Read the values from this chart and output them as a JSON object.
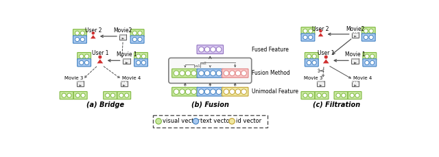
{
  "bg_color": "#ffffff",
  "green_fill": "#c8e8a0",
  "green_edge": "#80b840",
  "blue_fill": "#a8c8f0",
  "blue_edge": "#4080c0",
  "yellow_fill": "#f0e8a0",
  "yellow_edge": "#c0a030",
  "pink_fill": "#f8c8c8",
  "pink_edge": "#e08080",
  "purple_fill": "#d8c8f0",
  "purple_edge": "#9070c0",
  "red_person": "#d03030",
  "arrow_color": "#505050",
  "film_fill": "#f0f0f0",
  "film_edge": "#606060",
  "label_a": "(a) Bridge",
  "label_b": "(b) Fusion",
  "label_c": "(c) Filtration",
  "legend_visual": "visual vector",
  "legend_text": "text vector",
  "legend_id": "id vector"
}
